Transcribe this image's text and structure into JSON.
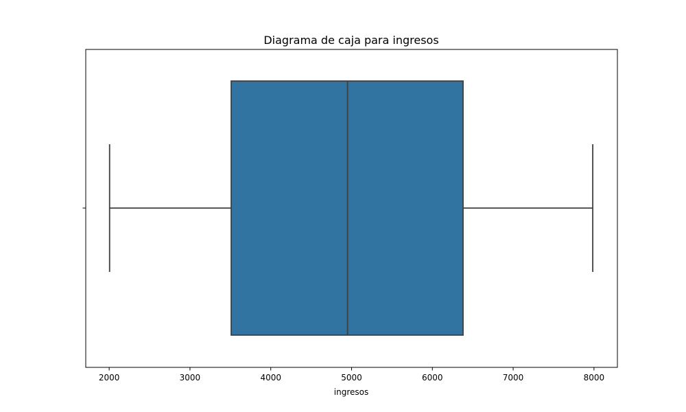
{
  "chart_data": {
    "type": "box",
    "title": "Diagrama de caja para ingresos",
    "xlabel": "ingresos",
    "ylabel": "",
    "xlim": [
      1710,
      8290
    ],
    "xticks": [
      2000,
      3000,
      4000,
      5000,
      6000,
      7000,
      8000
    ],
    "xtick_labels": [
      "2000",
      "3000",
      "4000",
      "5000",
      "6000",
      "7000",
      "8000"
    ],
    "grid": false,
    "legend": "none",
    "box": {
      "whisker_low": 2005,
      "q1": 3510,
      "median": 4950,
      "q3": 6380,
      "whisker_high": 7985
    },
    "colors": {
      "box_fill": "#3274a1",
      "lines": "#3f3f3f",
      "axes": "#000000"
    }
  }
}
